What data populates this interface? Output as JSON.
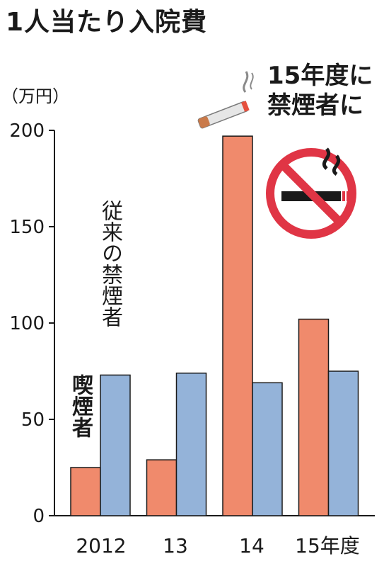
{
  "title": "1人当たり入院費",
  "unit": "（万円）",
  "note": [
    "15年度に",
    "禁煙者に"
  ],
  "chart_data": {
    "type": "bar",
    "categories": [
      "2012",
      "13",
      "14",
      "15年度"
    ],
    "series": [
      {
        "name": "喫煙者",
        "values": [
          25,
          29,
          197,
          102
        ],
        "color": "#f08a6c"
      },
      {
        "name": "従来の禁煙者",
        "values": [
          73,
          74,
          69,
          75
        ],
        "color": "#94b3d9"
      }
    ],
    "yticks": [
      0,
      50,
      100,
      150,
      200
    ],
    "ylim": [
      0,
      200
    ],
    "grid": false
  },
  "icons": [
    "cigarette-icon",
    "no-smoking-icon"
  ],
  "colors": {
    "no_smoking_red": "#e03545",
    "axis": "#1a1a1a"
  }
}
